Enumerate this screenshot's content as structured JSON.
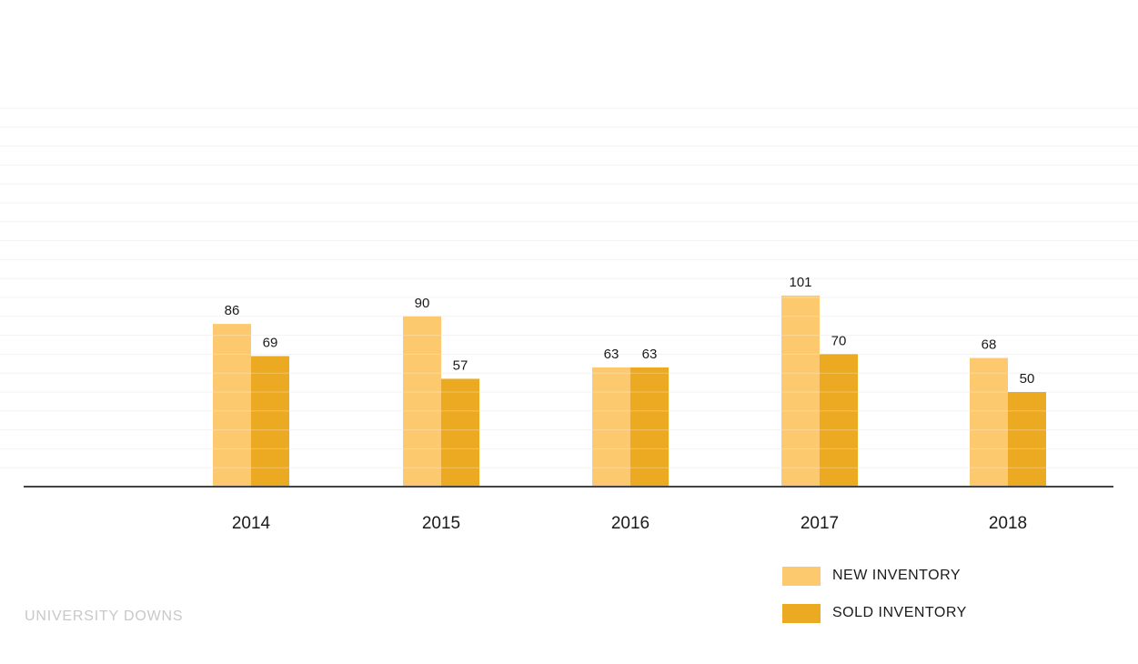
{
  "chart_data": {
    "type": "bar",
    "categories": [
      "2014",
      "2015",
      "2016",
      "2017",
      "2018"
    ],
    "series": [
      {
        "name": "NEW INVENTORY",
        "values": [
          86,
          90,
          63,
          101,
          68
        ],
        "color": "#FDC96E"
      },
      {
        "name": "SOLD INVENTORY",
        "values": [
          69,
          57,
          63,
          70,
          50
        ],
        "color": "#ECAA23"
      }
    ],
    "title": "",
    "xlabel": "",
    "ylabel": "",
    "ylim": [
      0,
      200
    ],
    "grid": true,
    "legend_position": "bottom-right",
    "data_labels": true
  },
  "legend": {
    "new_label": "NEW INVENTORY",
    "sold_label": "SOLD INVENTORY"
  },
  "footer": {
    "brand": "UNIVERSITY DOWNS"
  }
}
